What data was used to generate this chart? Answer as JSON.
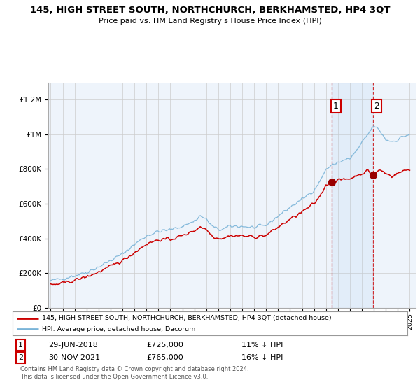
{
  "title": "145, HIGH STREET SOUTH, NORTHCHURCH, BERKHAMSTED, HP4 3QT",
  "subtitle": "Price paid vs. HM Land Registry's House Price Index (HPI)",
  "legend_line1": "145, HIGH STREET SOUTH, NORTHCHURCH, BERKHAMSTED, HP4 3QT (detached house)",
  "legend_line2": "HPI: Average price, detached house, Dacorum",
  "annotation1_date": "29-JUN-2018",
  "annotation1_price": "£725,000",
  "annotation1_hpi": "11% ↓ HPI",
  "annotation2_date": "30-NOV-2021",
  "annotation2_price": "£765,000",
  "annotation2_hpi": "16% ↓ HPI",
  "footer": "Contains HM Land Registry data © Crown copyright and database right 2024.\nThis data is licensed under the Open Government Licence v3.0.",
  "sale1_year": 2018.5,
  "sale1_value": 725000,
  "sale2_year": 2021.917,
  "sale2_value": 765000,
  "hpi_color": "#7ab4d8",
  "price_color": "#cc0000",
  "background_color": "#ffffff",
  "plot_bg_color": "#eef4fb",
  "grid_color": "#cccccc",
  "ylim_max": 1300000,
  "xlim_start": 1994.8,
  "xlim_end": 2025.5
}
